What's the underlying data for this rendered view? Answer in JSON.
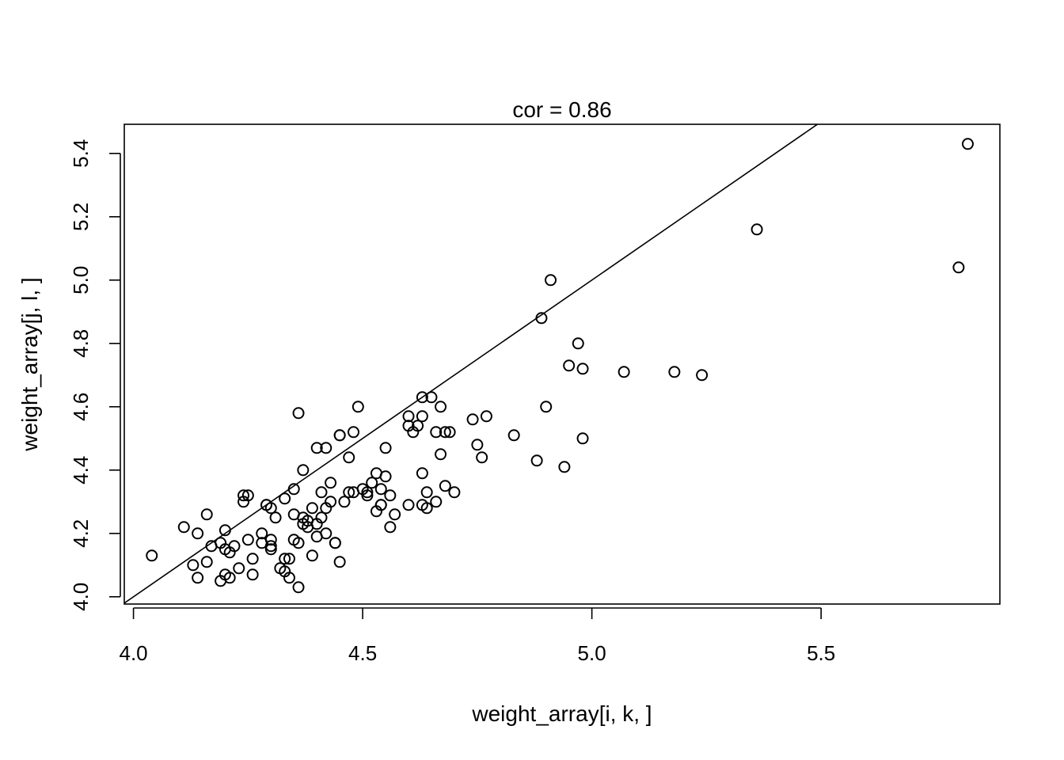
{
  "chart_data": {
    "type": "scatter",
    "title": "cor = 0.86",
    "xlabel": "weight_array[i, k, ]",
    "ylabel": "weight_array[j, l, ]",
    "xlim": [
      3.98,
      5.89
    ],
    "ylim": [
      3.977,
      5.492
    ],
    "x_ticks": [
      4.0,
      4.5,
      5.0,
      5.5
    ],
    "x_tick_labels": [
      "4.0",
      "4.5",
      "5.0",
      "5.5"
    ],
    "y_ticks": [
      4.0,
      4.2,
      4.4,
      4.6,
      4.8,
      5.0,
      5.2,
      5.4
    ],
    "y_tick_labels": [
      "4.0",
      "4.2",
      "4.4",
      "4.6",
      "4.8",
      "5.0",
      "5.2",
      "5.4"
    ],
    "reference_line": {
      "intercept": 0,
      "slope": 1
    },
    "grid": false,
    "legend": false,
    "points": [
      [
        4.04,
        4.13
      ],
      [
        4.11,
        4.22
      ],
      [
        4.13,
        4.1
      ],
      [
        4.14,
        4.06
      ],
      [
        4.14,
        4.2
      ],
      [
        4.16,
        4.11
      ],
      [
        4.16,
        4.26
      ],
      [
        4.17,
        4.16
      ],
      [
        4.19,
        4.05
      ],
      [
        4.19,
        4.17
      ],
      [
        4.2,
        4.07
      ],
      [
        4.2,
        4.15
      ],
      [
        4.2,
        4.21
      ],
      [
        4.21,
        4.06
      ],
      [
        4.21,
        4.14
      ],
      [
        4.22,
        4.16
      ],
      [
        4.23,
        4.09
      ],
      [
        4.24,
        4.3
      ],
      [
        4.24,
        4.32
      ],
      [
        4.25,
        4.32
      ],
      [
        4.25,
        4.18
      ],
      [
        4.26,
        4.07
      ],
      [
        4.26,
        4.12
      ],
      [
        4.28,
        4.2
      ],
      [
        4.28,
        4.17
      ],
      [
        4.29,
        4.29
      ],
      [
        4.29,
        4.29
      ],
      [
        4.3,
        4.15
      ],
      [
        4.3,
        4.16
      ],
      [
        4.3,
        4.18
      ],
      [
        4.3,
        4.28
      ],
      [
        4.31,
        4.25
      ],
      [
        4.32,
        4.09
      ],
      [
        4.33,
        4.08
      ],
      [
        4.33,
        4.31
      ],
      [
        4.33,
        4.12
      ],
      [
        4.34,
        4.06
      ],
      [
        4.34,
        4.12
      ],
      [
        4.35,
        4.34
      ],
      [
        4.35,
        4.18
      ],
      [
        4.35,
        4.26
      ],
      [
        4.36,
        4.03
      ],
      [
        4.36,
        4.17
      ],
      [
        4.36,
        4.58
      ],
      [
        4.37,
        4.4
      ],
      [
        4.37,
        4.25
      ],
      [
        4.37,
        4.23
      ],
      [
        4.38,
        4.24
      ],
      [
        4.38,
        4.22
      ],
      [
        4.39,
        4.13
      ],
      [
        4.39,
        4.28
      ],
      [
        4.4,
        4.23
      ],
      [
        4.4,
        4.47
      ],
      [
        4.4,
        4.19
      ],
      [
        4.41,
        4.25
      ],
      [
        4.41,
        4.33
      ],
      [
        4.42,
        4.28
      ],
      [
        4.42,
        4.47
      ],
      [
        4.43,
        4.36
      ],
      [
        4.43,
        4.3
      ],
      [
        4.42,
        4.2
      ],
      [
        4.44,
        4.17
      ],
      [
        4.44,
        4.17
      ],
      [
        4.45,
        4.11
      ],
      [
        4.45,
        4.51
      ],
      [
        4.45,
        4.51
      ],
      [
        4.46,
        4.3
      ],
      [
        4.47,
        4.33
      ],
      [
        4.47,
        4.44
      ],
      [
        4.48,
        4.52
      ],
      [
        4.48,
        4.33
      ],
      [
        4.49,
        4.6
      ],
      [
        4.5,
        4.34
      ],
      [
        4.51,
        4.32
      ],
      [
        4.51,
        4.33
      ],
      [
        4.52,
        4.36
      ],
      [
        4.53,
        4.39
      ],
      [
        4.53,
        4.27
      ],
      [
        4.54,
        4.29
      ],
      [
        4.54,
        4.29
      ],
      [
        4.54,
        4.34
      ],
      [
        4.55,
        4.38
      ],
      [
        4.55,
        4.47
      ],
      [
        4.56,
        4.32
      ],
      [
        4.57,
        4.26
      ],
      [
        4.56,
        4.22
      ],
      [
        4.6,
        4.29
      ],
      [
        4.6,
        4.57
      ],
      [
        4.6,
        4.54
      ],
      [
        4.61,
        4.52
      ],
      [
        4.62,
        4.54
      ],
      [
        4.63,
        4.29
      ],
      [
        4.63,
        4.39
      ],
      [
        4.63,
        4.57
      ],
      [
        4.63,
        4.63
      ],
      [
        4.64,
        4.33
      ],
      [
        4.64,
        4.28
      ],
      [
        4.65,
        4.63
      ],
      [
        4.66,
        4.3
      ],
      [
        4.66,
        4.52
      ],
      [
        4.67,
        4.6
      ],
      [
        4.67,
        4.45
      ],
      [
        4.68,
        4.35
      ],
      [
        4.68,
        4.52
      ],
      [
        4.69,
        4.52
      ],
      [
        4.7,
        4.33
      ],
      [
        4.74,
        4.56
      ],
      [
        4.75,
        4.48
      ],
      [
        4.76,
        4.44
      ],
      [
        4.77,
        4.57
      ],
      [
        4.83,
        4.51
      ],
      [
        4.88,
        4.43
      ],
      [
        4.89,
        4.88
      ],
      [
        4.9,
        4.6
      ],
      [
        4.91,
        5.0
      ],
      [
        4.94,
        4.41
      ],
      [
        4.95,
        4.73
      ],
      [
        4.97,
        4.8
      ],
      [
        4.98,
        4.72
      ],
      [
        4.98,
        4.5
      ],
      [
        5.07,
        4.71
      ],
      [
        5.18,
        4.71
      ],
      [
        5.24,
        4.7
      ],
      [
        5.36,
        5.16
      ],
      [
        5.8,
        5.04
      ],
      [
        5.82,
        5.43
      ]
    ]
  }
}
